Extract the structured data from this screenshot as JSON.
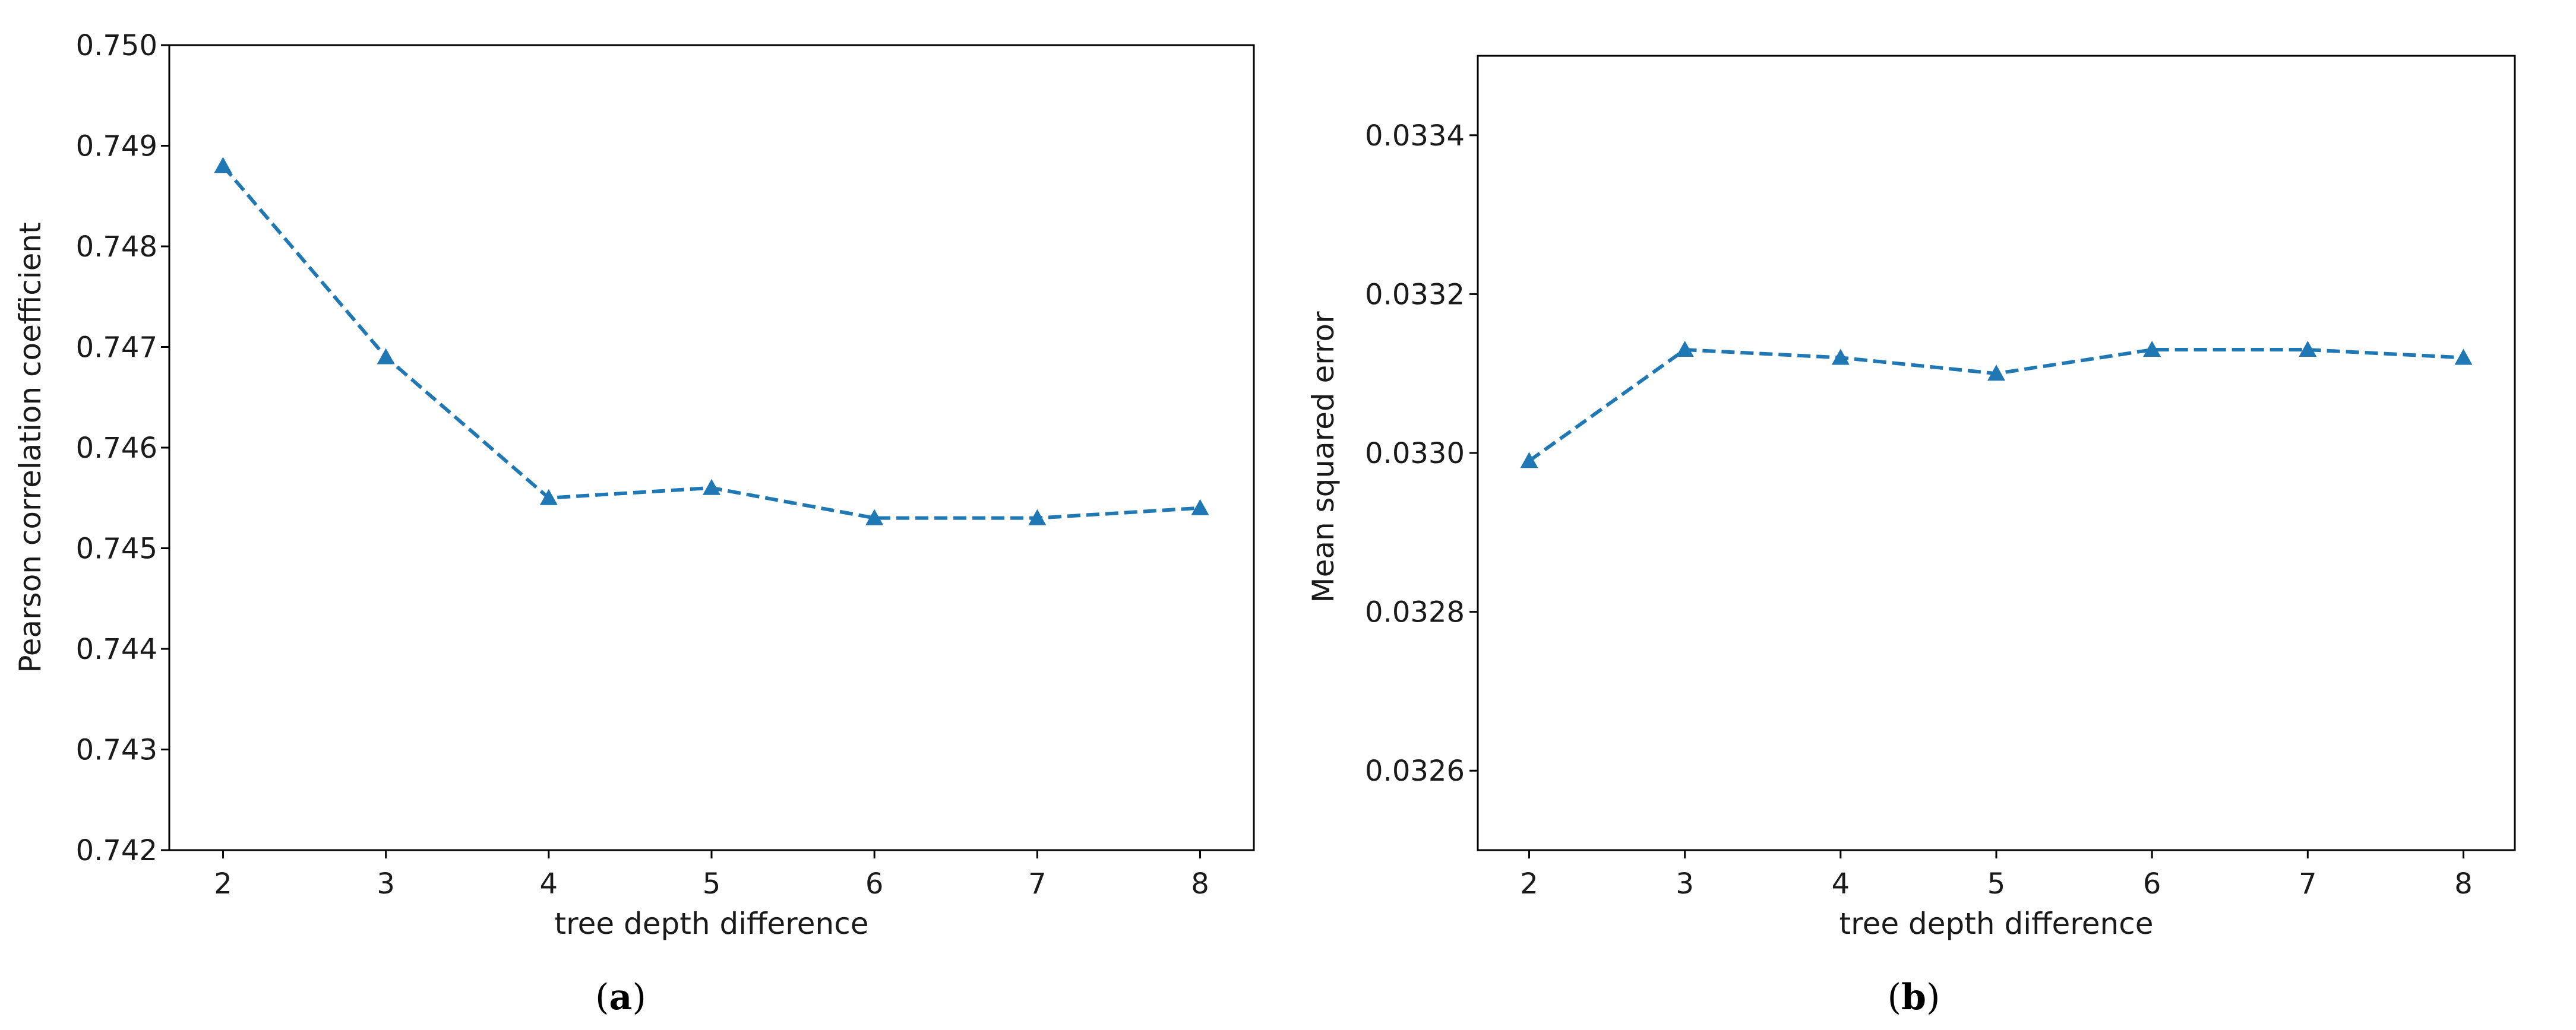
{
  "colors": {
    "series": "#1f77b4",
    "axis": "#000000",
    "text": "#1a1a1a"
  },
  "chart_data": [
    {
      "type": "line",
      "caption_prefix": "(",
      "caption_letter": "a",
      "caption_suffix": ")",
      "title": "",
      "xlabel": "tree depth difference",
      "ylabel": "Pearson correlation coefficient",
      "x": [
        2,
        3,
        4,
        5,
        6,
        7,
        8
      ],
      "xticks": [
        "2",
        "3",
        "4",
        "5",
        "6",
        "7",
        "8"
      ],
      "xlim": [
        1.67,
        8.33
      ],
      "ylim": [
        0.742,
        0.75
      ],
      "yticks": [
        "0.742",
        "0.743",
        "0.744",
        "0.745",
        "0.746",
        "0.747",
        "0.748",
        "0.749",
        "0.750"
      ],
      "grid": false,
      "series": [
        {
          "name": "series",
          "line_style": "dashed",
          "marker": "triangle-up",
          "values": [
            0.7488,
            0.7469,
            0.7455,
            0.7456,
            0.7453,
            0.7453,
            0.7454
          ]
        }
      ]
    },
    {
      "type": "line",
      "caption_prefix": "(",
      "caption_letter": "b",
      "caption_suffix": ")",
      "title": "",
      "xlabel": "tree depth difference",
      "ylabel": "Mean squared error",
      "x": [
        2,
        3,
        4,
        5,
        6,
        7,
        8
      ],
      "xticks": [
        "2",
        "3",
        "4",
        "5",
        "6",
        "7",
        "8"
      ],
      "xlim": [
        1.67,
        8.33
      ],
      "ylim": [
        0.0325,
        0.0335
      ],
      "yticks": [
        "0.0326",
        "0.0328",
        "0.0330",
        "0.0332",
        "0.0334"
      ],
      "grid": false,
      "series": [
        {
          "name": "series",
          "line_style": "dashed",
          "marker": "triangle-up",
          "values": [
            0.03299,
            0.03313,
            0.03312,
            0.0331,
            0.03313,
            0.03313,
            0.03312
          ]
        }
      ]
    }
  ]
}
